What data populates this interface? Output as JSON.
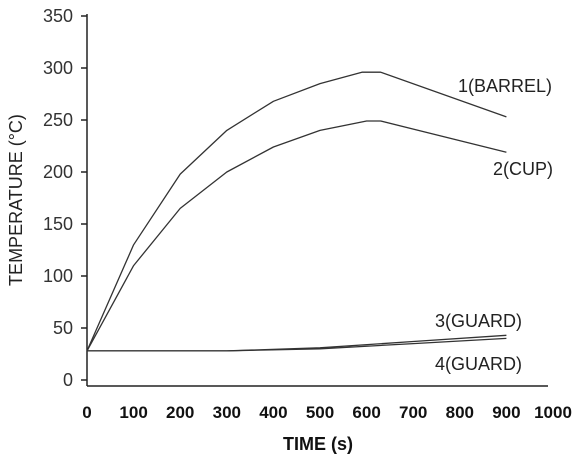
{
  "chart_data": {
    "type": "line",
    "xlabel": "TIME (s)",
    "ylabel": "TEMPERATURE (°C)",
    "xlim": [
      0,
      1000
    ],
    "ylim": [
      0,
      350
    ],
    "xticks": [
      "0",
      "100",
      "200",
      "300",
      "400",
      "500",
      "600",
      "700",
      "800",
      "900",
      "1000"
    ],
    "yticks": [
      "0",
      "50",
      "100",
      "150",
      "200",
      "250",
      "300",
      "350"
    ],
    "grid": false,
    "series": [
      {
        "name": "1(BARREL)",
        "x": [
          0,
          100,
          200,
          300,
          400,
          500,
          590,
          630,
          900
        ],
        "y": [
          28,
          130,
          198,
          240,
          268,
          285,
          296,
          296,
          253
        ]
      },
      {
        "name": "2(CUP)",
        "x": [
          0,
          100,
          200,
          300,
          400,
          500,
          600,
          630,
          900
        ],
        "y": [
          28,
          110,
          165,
          200,
          224,
          240,
          249,
          249,
          219
        ]
      },
      {
        "name": "3(GUARD)",
        "x": [
          0,
          300,
          500,
          700,
          900
        ],
        "y": [
          28,
          28,
          31,
          37,
          43
        ]
      },
      {
        "name": "4(GUARD)",
        "x": [
          0,
          300,
          500,
          700,
          900
        ],
        "y": [
          28,
          28,
          30,
          35,
          40
        ]
      }
    ]
  }
}
